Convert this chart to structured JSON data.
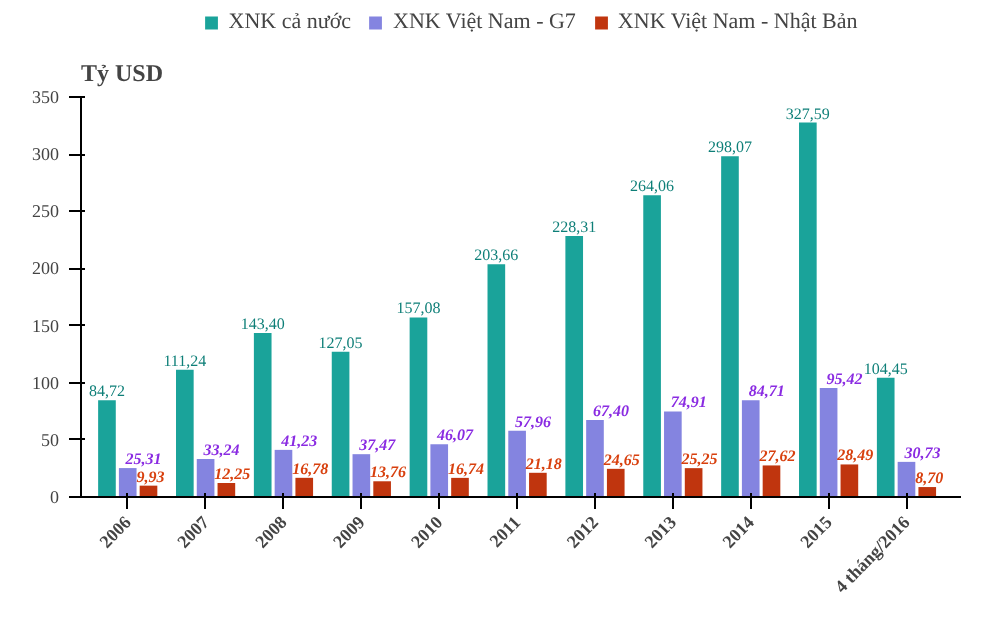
{
  "chart_data": {
    "type": "bar",
    "ylabel": "Tỷ USD",
    "categories": [
      "2006",
      "2007",
      "2008",
      "2009",
      "2010",
      "2011",
      "2012",
      "2013",
      "2014",
      "2015",
      "4 tháng/2016"
    ],
    "series": [
      {
        "name": "XNK cả nước",
        "color": "#1aa39a",
        "values": [
          84.72,
          111.24,
          143.4,
          127.05,
          157.08,
          203.66,
          228.31,
          264.06,
          298.07,
          327.59,
          104.45
        ],
        "value_labels": [
          "84,72",
          "111,24",
          "143,40",
          "127,05",
          "157,08",
          "203,66",
          "228,31",
          "264,06",
          "298,07",
          "327,59",
          "104,45"
        ]
      },
      {
        "name": "XNK Việt Nam - G7",
        "color": "#8484e0",
        "values": [
          25.31,
          33.24,
          41.23,
          37.47,
          46.07,
          57.96,
          67.4,
          74.91,
          84.71,
          95.42,
          30.73
        ],
        "value_labels": [
          "25,31",
          "33,24",
          "41,23",
          "37,47",
          "46,07",
          "57,96",
          "67,40",
          "74,91",
          "84,71",
          "95,42",
          "30,73"
        ]
      },
      {
        "name": "XNK Việt Nam - Nhật Bản",
        "color": "#c0350e",
        "values": [
          9.93,
          12.25,
          16.78,
          13.76,
          16.74,
          21.18,
          24.65,
          25.25,
          27.62,
          28.49,
          8.7
        ],
        "value_labels": [
          "9,93",
          "12,25",
          "16,78",
          "13,76",
          "16,74",
          "21,18",
          "24,65",
          "25,25",
          "27,62",
          "28,49",
          "8,70"
        ]
      }
    ],
    "ylim": [
      0,
      350
    ],
    "yticks": [
      0,
      50,
      100,
      150,
      200,
      250,
      300,
      350
    ],
    "grid": false,
    "legend": "top"
  }
}
